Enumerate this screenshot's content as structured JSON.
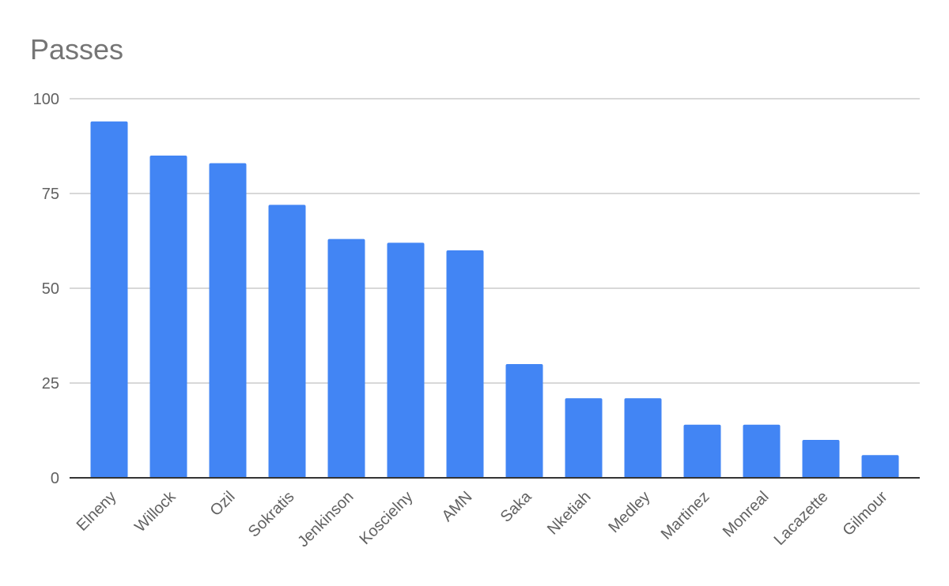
{
  "chart_data": {
    "type": "bar",
    "title": "Passes",
    "categories": [
      "Elneny",
      "Willock",
      "Ozil",
      "Sokratis",
      "Jenkinson",
      "Koscielny",
      "AMN",
      "Saka",
      "Nketiah",
      "Medley",
      "Martinez",
      "Monreal",
      "Lacazette",
      "Gilmour"
    ],
    "values": [
      94,
      85,
      83,
      72,
      63,
      62,
      60,
      30,
      21,
      21,
      14,
      14,
      10,
      6
    ],
    "color": "#4285f4",
    "ylim": [
      0,
      100
    ],
    "yticks": [
      0,
      25,
      50,
      75,
      100
    ],
    "grid": true
  }
}
